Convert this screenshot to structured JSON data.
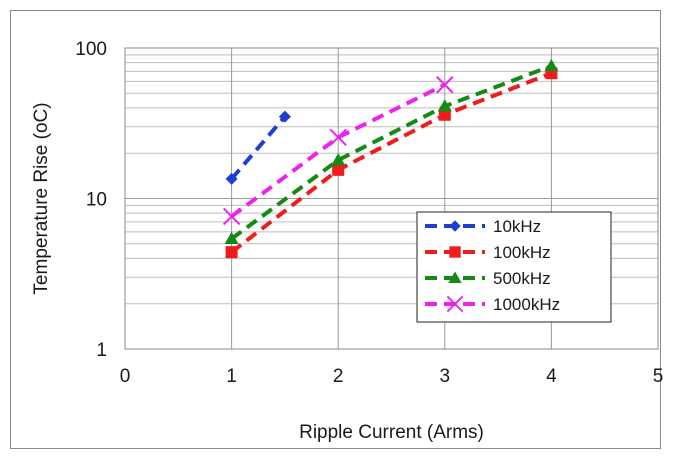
{
  "chart_data": {
    "type": "line",
    "title": "",
    "xlabel": "Ripple Current (Arms)",
    "ylabel": "Temperature Rise (oC)",
    "xlim": [
      0,
      5
    ],
    "ylim": [
      1,
      100
    ],
    "y_scale": "log",
    "grid": true,
    "legend_position": "bottom-right",
    "x_ticks": [
      "0",
      "1",
      "2",
      "3",
      "4",
      "5"
    ],
    "y_ticks": [
      "1",
      "10",
      "100"
    ],
    "series": [
      {
        "name": "10kHz",
        "color": "#1f3fd0",
        "marker": "diamond",
        "x": [
          1,
          1.5
        ],
        "y": [
          13.5,
          35
        ]
      },
      {
        "name": "100kHz",
        "color": "#ee1c1c",
        "marker": "square",
        "x": [
          1,
          2,
          3,
          4
        ],
        "y": [
          4.4,
          15.5,
          36,
          68
        ]
      },
      {
        "name": "500kHz",
        "color": "#138a13",
        "marker": "triangle",
        "x": [
          1,
          2,
          3,
          4
        ],
        "y": [
          5.4,
          18,
          41,
          76
        ]
      },
      {
        "name": "1000kHz",
        "color": "#ee22ee",
        "marker": "x",
        "x": [
          1,
          2,
          3
        ],
        "y": [
          7.6,
          25.5,
          57
        ]
      }
    ]
  }
}
